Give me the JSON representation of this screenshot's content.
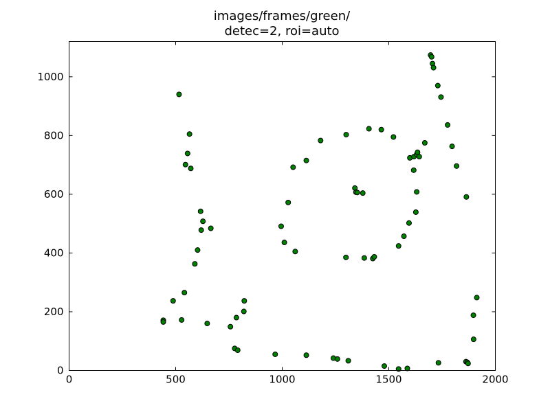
{
  "chart_data": {
    "type": "scatter",
    "title_line1": "images/frames/green/",
    "title_line2": "detec=2, roi=auto",
    "xlabel": "",
    "ylabel": "",
    "xlim": [
      0,
      2000
    ],
    "ylim": [
      0,
      1120
    ],
    "xticks": [
      0,
      500,
      1000,
      1500,
      2000
    ],
    "yticks": [
      0,
      200,
      400,
      600,
      800,
      1000
    ],
    "grid": false,
    "marker_color": "#008000",
    "marker_edge": "#000000",
    "points": [
      [
        442,
        171
      ],
      [
        442,
        165
      ],
      [
        488,
        237
      ],
      [
        516,
        940
      ],
      [
        528,
        172
      ],
      [
        541,
        265
      ],
      [
        546,
        701
      ],
      [
        556,
        739
      ],
      [
        565,
        805
      ],
      [
        571,
        688
      ],
      [
        590,
        363
      ],
      [
        603,
        410
      ],
      [
        617,
        542
      ],
      [
        620,
        478
      ],
      [
        628,
        508
      ],
      [
        648,
        160
      ],
      [
        665,
        484
      ],
      [
        757,
        149
      ],
      [
        777,
        75
      ],
      [
        785,
        180
      ],
      [
        791,
        69
      ],
      [
        820,
        201
      ],
      [
        822,
        237
      ],
      [
        967,
        55
      ],
      [
        995,
        491
      ],
      [
        1010,
        436
      ],
      [
        1028,
        572
      ],
      [
        1051,
        692
      ],
      [
        1061,
        405
      ],
      [
        1113,
        715
      ],
      [
        1113,
        52
      ],
      [
        1180,
        783
      ],
      [
        1240,
        42
      ],
      [
        1259,
        39
      ],
      [
        1299,
        385
      ],
      [
        1300,
        803
      ],
      [
        1310,
        33
      ],
      [
        1341,
        621
      ],
      [
        1346,
        607
      ],
      [
        1352,
        606
      ],
      [
        1378,
        604
      ],
      [
        1385,
        383
      ],
      [
        1407,
        823
      ],
      [
        1425,
        381
      ],
      [
        1432,
        387
      ],
      [
        1465,
        820
      ],
      [
        1479,
        15
      ],
      [
        1522,
        795
      ],
      [
        1546,
        424
      ],
      [
        1546,
        5
      ],
      [
        1571,
        457
      ],
      [
        1587,
        7
      ],
      [
        1595,
        502
      ],
      [
        1599,
        724
      ],
      [
        1617,
        682
      ],
      [
        1618,
        728
      ],
      [
        1627,
        539
      ],
      [
        1631,
        608
      ],
      [
        1631,
        736
      ],
      [
        1635,
        743
      ],
      [
        1643,
        728
      ],
      [
        1669,
        775
      ],
      [
        1696,
        1074
      ],
      [
        1701,
        1068
      ],
      [
        1705,
        1045
      ],
      [
        1710,
        1031
      ],
      [
        1730,
        970
      ],
      [
        1733,
        26
      ],
      [
        1745,
        931
      ],
      [
        1776,
        836
      ],
      [
        1797,
        763
      ],
      [
        1818,
        696
      ],
      [
        1862,
        30
      ],
      [
        1864,
        591
      ],
      [
        1868,
        28
      ],
      [
        1872,
        24
      ],
      [
        1897,
        188
      ],
      [
        1898,
        106
      ],
      [
        1913,
        248
      ]
    ]
  }
}
